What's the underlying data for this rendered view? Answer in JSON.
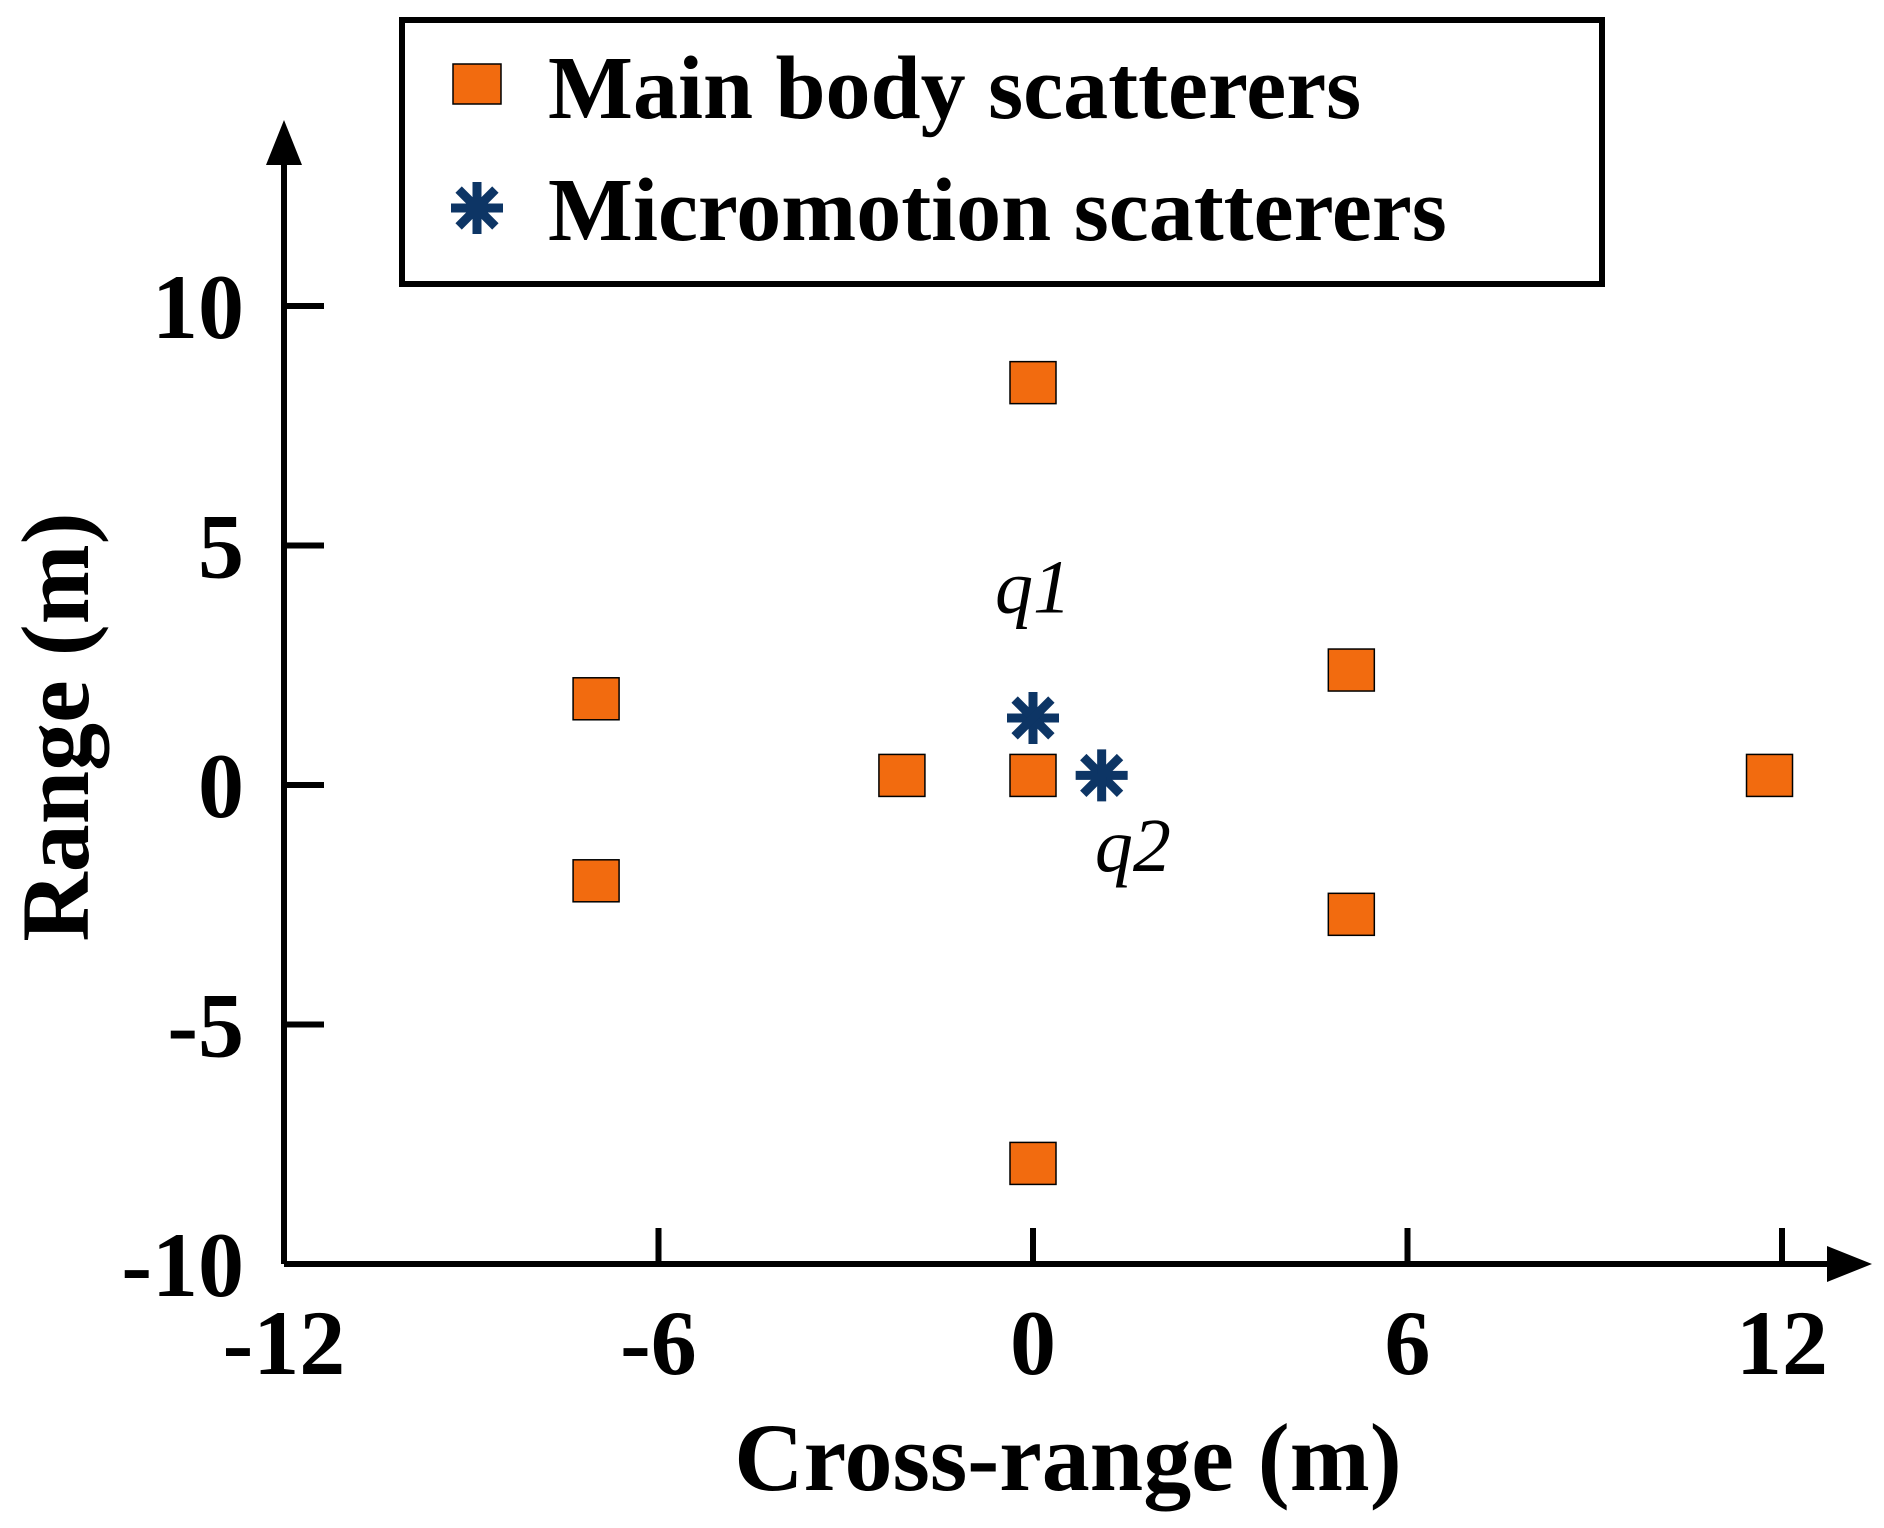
{
  "chart_data": {
    "type": "scatter",
    "title": "",
    "xlabel": "Cross-range (m)",
    "ylabel": "Range (m)",
    "xlim": [
      -12,
      13.5
    ],
    "ylim": [
      -10,
      13.5
    ],
    "x_ticks": [
      -12,
      -6,
      0,
      6,
      12
    ],
    "y_ticks": [
      -10,
      -5,
      0,
      5,
      10
    ],
    "x_tick_labels": [
      "-12",
      "-6",
      "0",
      "6",
      "12"
    ],
    "y_tick_labels": [
      "-10",
      "-5",
      "0",
      "5",
      "10"
    ],
    "legend_position": "top-center",
    "grid": false,
    "series": [
      {
        "name": "Main body scatterers",
        "marker": "square",
        "color": "#f26b0f",
        "points": [
          [
            0,
            8.4
          ],
          [
            -7,
            1.8
          ],
          [
            -7,
            -2.0
          ],
          [
            -2.1,
            0.2
          ],
          [
            0,
            0.2
          ],
          [
            5.1,
            2.4
          ],
          [
            5.1,
            -2.7
          ],
          [
            11.8,
            0.2
          ],
          [
            0,
            -7.9
          ]
        ]
      },
      {
        "name": "Micromotion scatterers",
        "marker": "asterisk",
        "color": "#0d3565",
        "points": [
          [
            0,
            1.4
          ],
          [
            1.1,
            0.2
          ]
        ]
      }
    ],
    "annotations": [
      {
        "label": "q1",
        "x": 0,
        "y": 3.6
      },
      {
        "label": "q2",
        "x": 1.6,
        "y": -1.8
      }
    ]
  }
}
